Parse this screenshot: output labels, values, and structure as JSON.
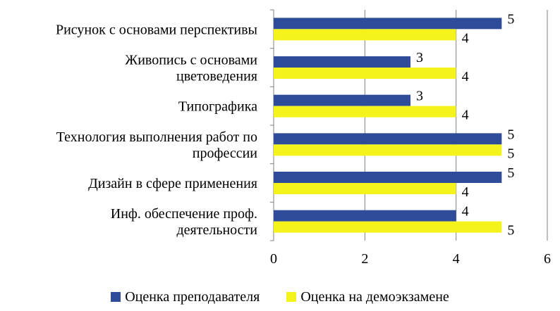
{
  "chart_data": {
    "type": "bar",
    "orientation": "horizontal",
    "categories": [
      [
        "Рисунок с основами перспективы"
      ],
      [
        "Живопись с основами",
        "цветоведения"
      ],
      [
        "Типографика"
      ],
      [
        "Технология выполнения работ по",
        "профессии"
      ],
      [
        "Дизайн в сфере применения"
      ],
      [
        "Инф. обеспечение  проф.",
        "деятельности"
      ]
    ],
    "series": [
      {
        "name": "Оценка преподавателя",
        "color": "#2E4C9A",
        "values": [
          5,
          3,
          3,
          5,
          5,
          4
        ]
      },
      {
        "name": "Оценка на демоэкзамене",
        "color": "#F4F41C",
        "values": [
          4,
          4,
          4,
          5,
          4,
          5
        ]
      }
    ],
    "xlim": [
      0,
      6
    ],
    "xticks": [
      0,
      2,
      4,
      6
    ],
    "grid": true,
    "legend_position": "bottom"
  }
}
